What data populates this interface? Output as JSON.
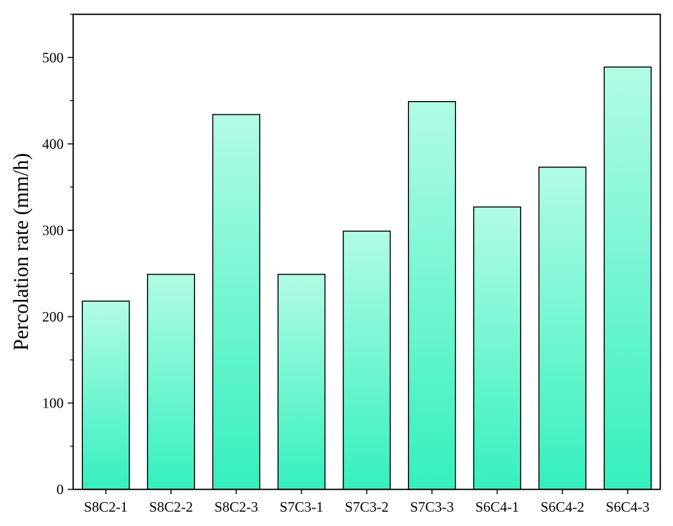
{
  "chart_data": {
    "type": "bar",
    "title": "",
    "xlabel": "",
    "ylabel": "Percolation rate (mm/h)",
    "categories": [
      "S8C2-1",
      "S8C2-2",
      "S8C2-3",
      "S7C3-1",
      "S7C3-2",
      "S7C3-3",
      "S6C4-1",
      "S6C4-2",
      "S6C4-3"
    ],
    "values": [
      218,
      249,
      434,
      249,
      299,
      449,
      327,
      373,
      489
    ],
    "ylim": [
      0,
      550
    ],
    "yticks": [
      0,
      100,
      200,
      300,
      400,
      500
    ],
    "grid": false,
    "legend": "none",
    "colors": {
      "bar_top": "#b2fbe6",
      "bar_bottom": "#34f0bd",
      "bar_edge": "#000000",
      "axis": "#000000"
    }
  }
}
